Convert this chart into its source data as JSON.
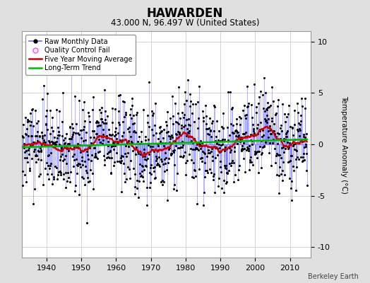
{
  "title": "HAWARDEN",
  "subtitle": "43.000 N, 96.497 W (United States)",
  "ylabel": "Temperature Anomaly (°C)",
  "watermark": "Berkeley Earth",
  "year_start": 1930,
  "year_end": 2015,
  "ylim": [
    -11,
    11
  ],
  "yticks": [
    -10,
    -5,
    0,
    5,
    10
  ],
  "xticks": [
    1940,
    1950,
    1960,
    1970,
    1980,
    1990,
    2000,
    2010
  ],
  "xlim_start": 1933,
  "xlim_end": 2016,
  "bg_color": "#e0e0e0",
  "plot_bg_color": "#ffffff",
  "raw_line_color": "#6666ff",
  "raw_marker_color": "#000000",
  "moving_avg_color": "#cc0000",
  "trend_color": "#00bb00",
  "qc_fail_color": "#ff44ff",
  "seed": 42,
  "title_fontsize": 12,
  "subtitle_fontsize": 8.5,
  "tick_fontsize": 8,
  "legend_fontsize": 7,
  "ylabel_fontsize": 7.5
}
